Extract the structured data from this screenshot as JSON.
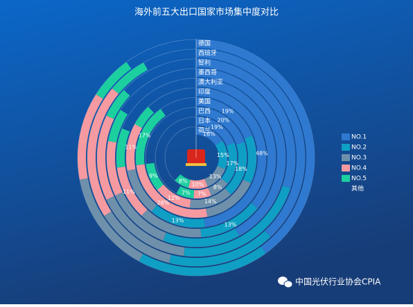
{
  "chart_data": {
    "type": "radial-stacked-bar",
    "title": "海外前五大出口国家市场集中度对比",
    "watermark": "中国光伏行业协会CPIA",
    "categories": [
      "德国",
      "西班牙",
      "智利",
      "墨西哥",
      "澳大利亚",
      "印度",
      "美国",
      "巴西",
      "日本",
      "荷兰"
    ],
    "legend": "right",
    "series": [
      {
        "name": "NO.1",
        "color": "#2f79d0",
        "values": [
          40,
          38,
          30,
          42,
          36,
          48,
          19,
          20,
          19,
          16
        ],
        "value_labels": [
          null,
          null,
          null,
          null,
          null,
          "48%",
          "19%",
          "20%",
          "19%",
          "16%"
        ]
      },
      {
        "name": "NO.2",
        "color": "#0f9fc4",
        "values": [
          18,
          16,
          22,
          14,
          13,
          13,
          13,
          18,
          17,
          15
        ],
        "value_labels": [
          null,
          null,
          null,
          null,
          "13%",
          "13%",
          null,
          "18%",
          "17%",
          "15%"
        ]
      },
      {
        "name": "NO.3",
        "color": "#6f90aa",
        "values": [
          14,
          12,
          16,
          12,
          13,
          11,
          15,
          14,
          8,
          13
        ],
        "value_labels": [
          null,
          null,
          null,
          null,
          null,
          null,
          null,
          "14%",
          "8%",
          "13%"
        ]
      },
      {
        "name": "NO.4",
        "color": "#f59aa0",
        "values": [
          12,
          20,
          14,
          10,
          11,
          11,
          26,
          12,
          7,
          10
        ],
        "value_labels": [
          null,
          null,
          null,
          null,
          "11%",
          "11%",
          "26%",
          "12%",
          "7%",
          "10%"
        ]
      },
      {
        "name": "NO.5",
        "color": "#1ccf9f",
        "values": [
          6,
          6,
          5,
          6,
          8,
          5,
          17,
          9,
          7,
          8
        ],
        "value_labels": [
          null,
          null,
          null,
          null,
          null,
          null,
          "17%",
          "9%",
          "7%",
          "8%"
        ]
      },
      {
        "name": "其他",
        "color": "transparent",
        "values": [
          10,
          8,
          13,
          16,
          19,
          12,
          10,
          27,
          42,
          38
        ],
        "value_labels": [
          null,
          null,
          null,
          null,
          null,
          null,
          null,
          null,
          null,
          null
        ]
      }
    ]
  }
}
